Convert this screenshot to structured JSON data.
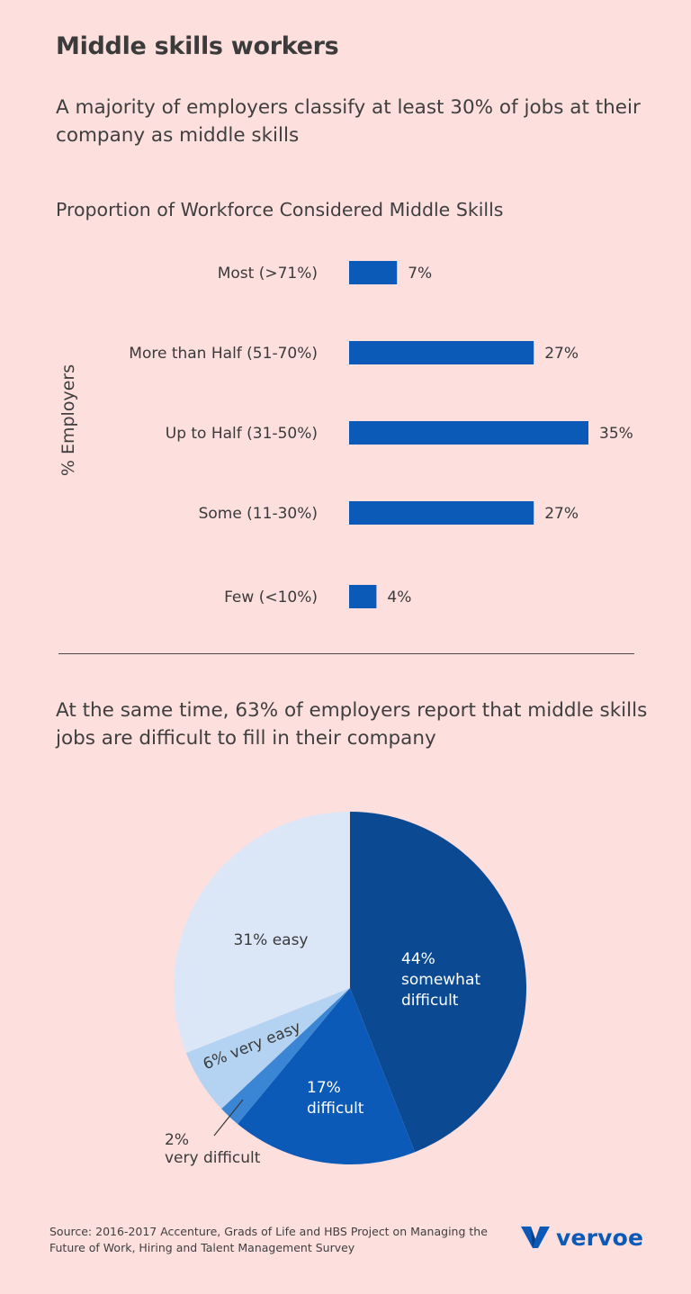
{
  "title": "Middle skills workers",
  "subtitle_top": "A majority of employers classify at least 30% of jobs at their company as middle skills",
  "subtitle_bottom": "At the same time, 63% of employers report that middle skills jobs are difficult to fill in their company",
  "source": "Source: 2016-2017 Accenture, Grads of Life and HBS Project on Managing the Future of Work, Hiring and Talent Management Survey",
  "logo": {
    "text": "vervoe",
    "color": "#0b5ab8"
  },
  "colors": {
    "background": "#fddfde",
    "bar": "#0b5ab8",
    "pie_somewhat_difficult": "#0b4a93",
    "pie_difficult": "#0b5ab8",
    "pie_very_difficult": "#3a86d4",
    "pie_very_easy": "#b4d3f2",
    "pie_easy": "#dbe6f7"
  },
  "chart_data": [
    {
      "type": "bar",
      "orientation": "horizontal",
      "title": "Proportion of Workforce Considered Middle Skills",
      "ylabel": "% Employers",
      "xlabel": "",
      "categories": [
        "Most (>71%)",
        "More than Half (51-70%)",
        "Up to Half (31-50%)",
        "Some (11-30%)",
        "Few (<10%)"
      ],
      "values": [
        7,
        27,
        35,
        27,
        4
      ],
      "value_labels": [
        "7%",
        "27%",
        "35%",
        "27%",
        "4%"
      ],
      "xlim": [
        0,
        35
      ],
      "grid": false
    },
    {
      "type": "pie",
      "title": "",
      "slices": [
        {
          "key": "somewhat_difficult",
          "value": 44,
          "label_lines": [
            "44%",
            "somewhat",
            "difficult"
          ]
        },
        {
          "key": "difficult",
          "value": 17,
          "label_lines": [
            "17%",
            "difficult"
          ]
        },
        {
          "key": "very_difficult",
          "value": 2,
          "label_lines": [
            "2%",
            "very difficult"
          ]
        },
        {
          "key": "very_easy",
          "value": 6,
          "label_lines": [
            "6% very easy"
          ]
        },
        {
          "key": "easy",
          "value": 31,
          "label_lines": [
            "31% easy"
          ]
        }
      ]
    }
  ]
}
